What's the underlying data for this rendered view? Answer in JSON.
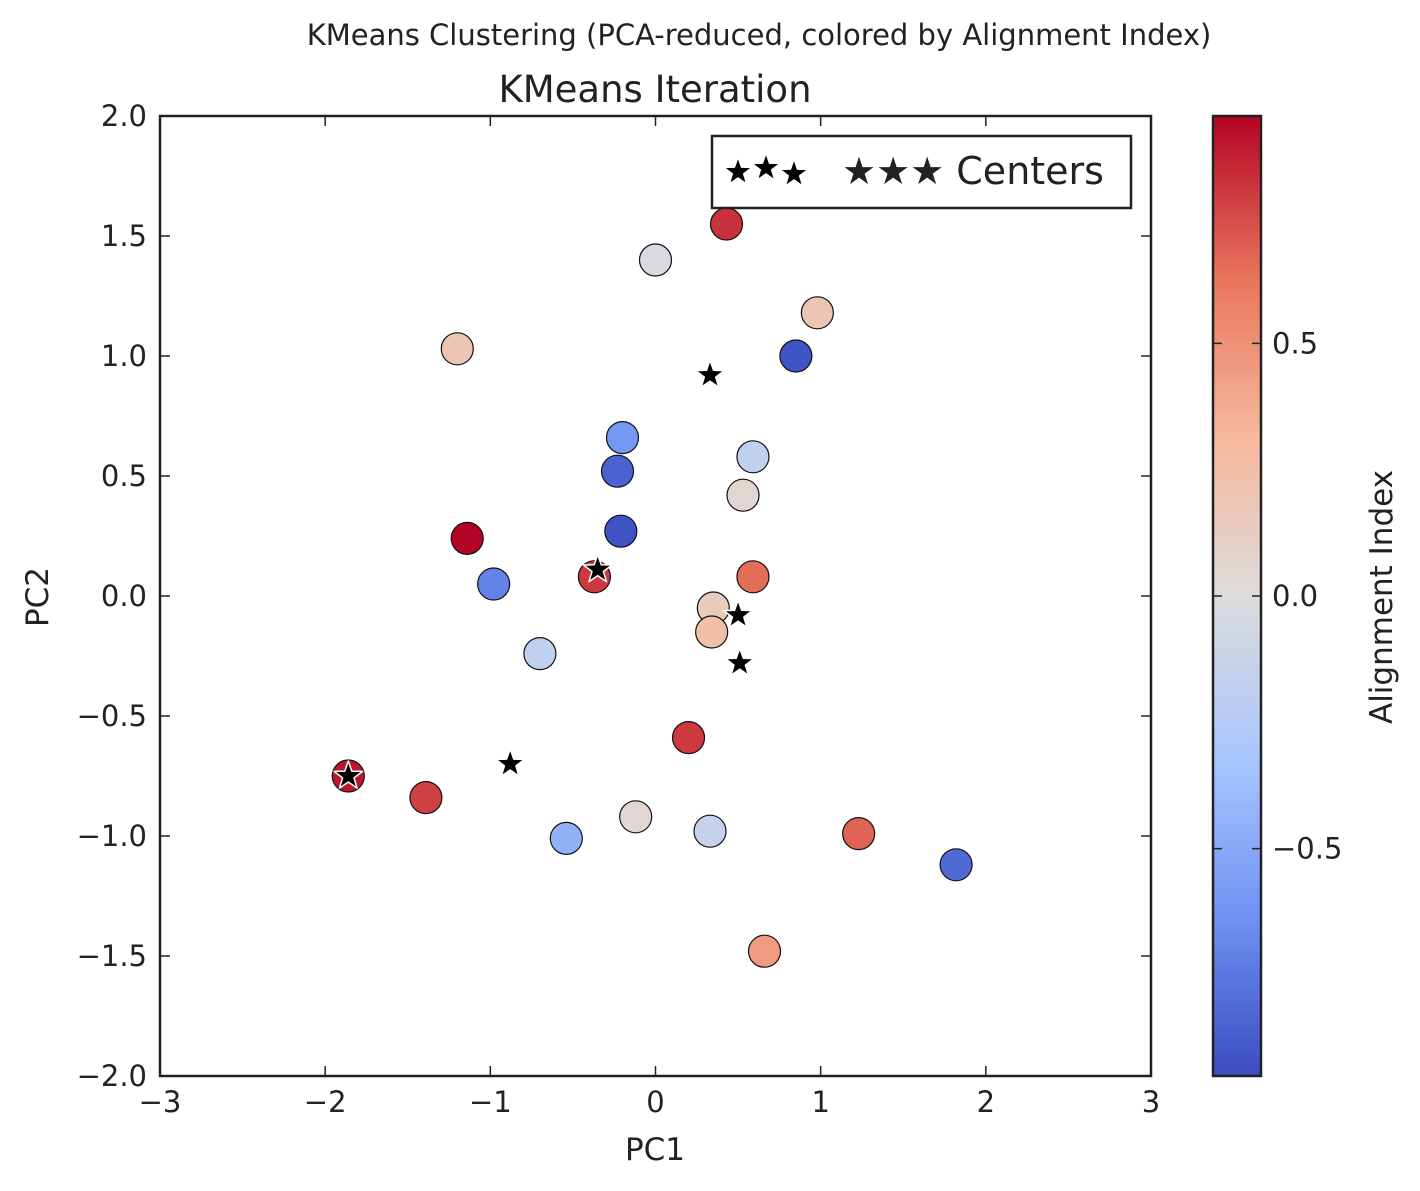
{
  "chart_data": {
    "type": "scatter",
    "suptitle": "KMeans Clustering (PCA-reduced, colored by Alignment Index)",
    "title": "KMeans Iteration",
    "xlabel": "PC1",
    "ylabel": "PC2",
    "xlim": [
      -3,
      3
    ],
    "ylim": [
      -2,
      2
    ],
    "xticks": [
      -3,
      -2,
      -1,
      0,
      1,
      2,
      3
    ],
    "xtick_labels": [
      "−3",
      "−2",
      "−1",
      "0",
      "1",
      "2",
      "3"
    ],
    "yticks": [
      -2.0,
      -1.5,
      -1.0,
      -0.5,
      0.0,
      0.5,
      1.0,
      1.5,
      2.0
    ],
    "ytick_labels": [
      "−2.0",
      "−1.5",
      "−1.0",
      "−0.5",
      "0.0",
      "0.5",
      "1.0",
      "1.5",
      "2.0"
    ],
    "grid": false,
    "legend": {
      "placement": "top-right",
      "label": "★★★ Centers"
    },
    "colormap": "coolwarm",
    "colorbar": {
      "label": "Alignment Index",
      "range": [
        -0.95,
        0.95
      ],
      "ticks": [
        -0.5,
        0.0,
        0.5
      ],
      "tick_labels": [
        "−0.5",
        "0.0",
        "0.5"
      ],
      "stops": [
        "#3b4cc0",
        "#6f92f3",
        "#aac7fd",
        "#dddcdc",
        "#f7b89c",
        "#e7745b",
        "#b40426"
      ]
    },
    "points": [
      {
        "x": 0.43,
        "y": 1.55,
        "value": 0.82
      },
      {
        "x": 0.0,
        "y": 1.4,
        "value": -0.03
      },
      {
        "x": 0.98,
        "y": 1.18,
        "value": 0.2
      },
      {
        "x": -1.2,
        "y": 1.03,
        "value": 0.2
      },
      {
        "x": 0.85,
        "y": 1.0,
        "value": -0.92
      },
      {
        "x": -0.2,
        "y": 0.66,
        "value": -0.6
      },
      {
        "x": 0.59,
        "y": 0.58,
        "value": -0.18
      },
      {
        "x": -0.23,
        "y": 0.52,
        "value": -0.85
      },
      {
        "x": 0.53,
        "y": 0.42,
        "value": 0.05
      },
      {
        "x": -0.21,
        "y": 0.27,
        "value": -0.92
      },
      {
        "x": -1.14,
        "y": 0.24,
        "value": 0.95
      },
      {
        "x": 0.59,
        "y": 0.08,
        "value": 0.65
      },
      {
        "x": -0.37,
        "y": 0.08,
        "value": 0.8
      },
      {
        "x": -0.98,
        "y": 0.05,
        "value": -0.7
      },
      {
        "x": 0.35,
        "y": -0.05,
        "value": 0.15
      },
      {
        "x": 0.34,
        "y": -0.15,
        "value": 0.25
      },
      {
        "x": -0.7,
        "y": -0.24,
        "value": -0.18
      },
      {
        "x": 0.2,
        "y": -0.59,
        "value": 0.8
      },
      {
        "x": -1.86,
        "y": -0.75,
        "value": 0.9
      },
      {
        "x": -1.39,
        "y": -0.84,
        "value": 0.78
      },
      {
        "x": -0.12,
        "y": -0.92,
        "value": 0.05
      },
      {
        "x": 0.33,
        "y": -0.98,
        "value": -0.15
      },
      {
        "x": 1.23,
        "y": -0.99,
        "value": 0.68
      },
      {
        "x": -0.54,
        "y": -1.01,
        "value": -0.45
      },
      {
        "x": 1.82,
        "y": -1.12,
        "value": -0.82
      },
      {
        "x": 0.66,
        "y": -1.48,
        "value": 0.45
      }
    ],
    "centers": [
      {
        "x": 0.33,
        "y": 0.92
      },
      {
        "x": -0.35,
        "y": 0.11
      },
      {
        "x": 0.5,
        "y": -0.08
      },
      {
        "x": 0.51,
        "y": -0.28
      },
      {
        "x": -0.88,
        "y": -0.7
      },
      {
        "x": -1.86,
        "y": -0.75
      }
    ]
  }
}
